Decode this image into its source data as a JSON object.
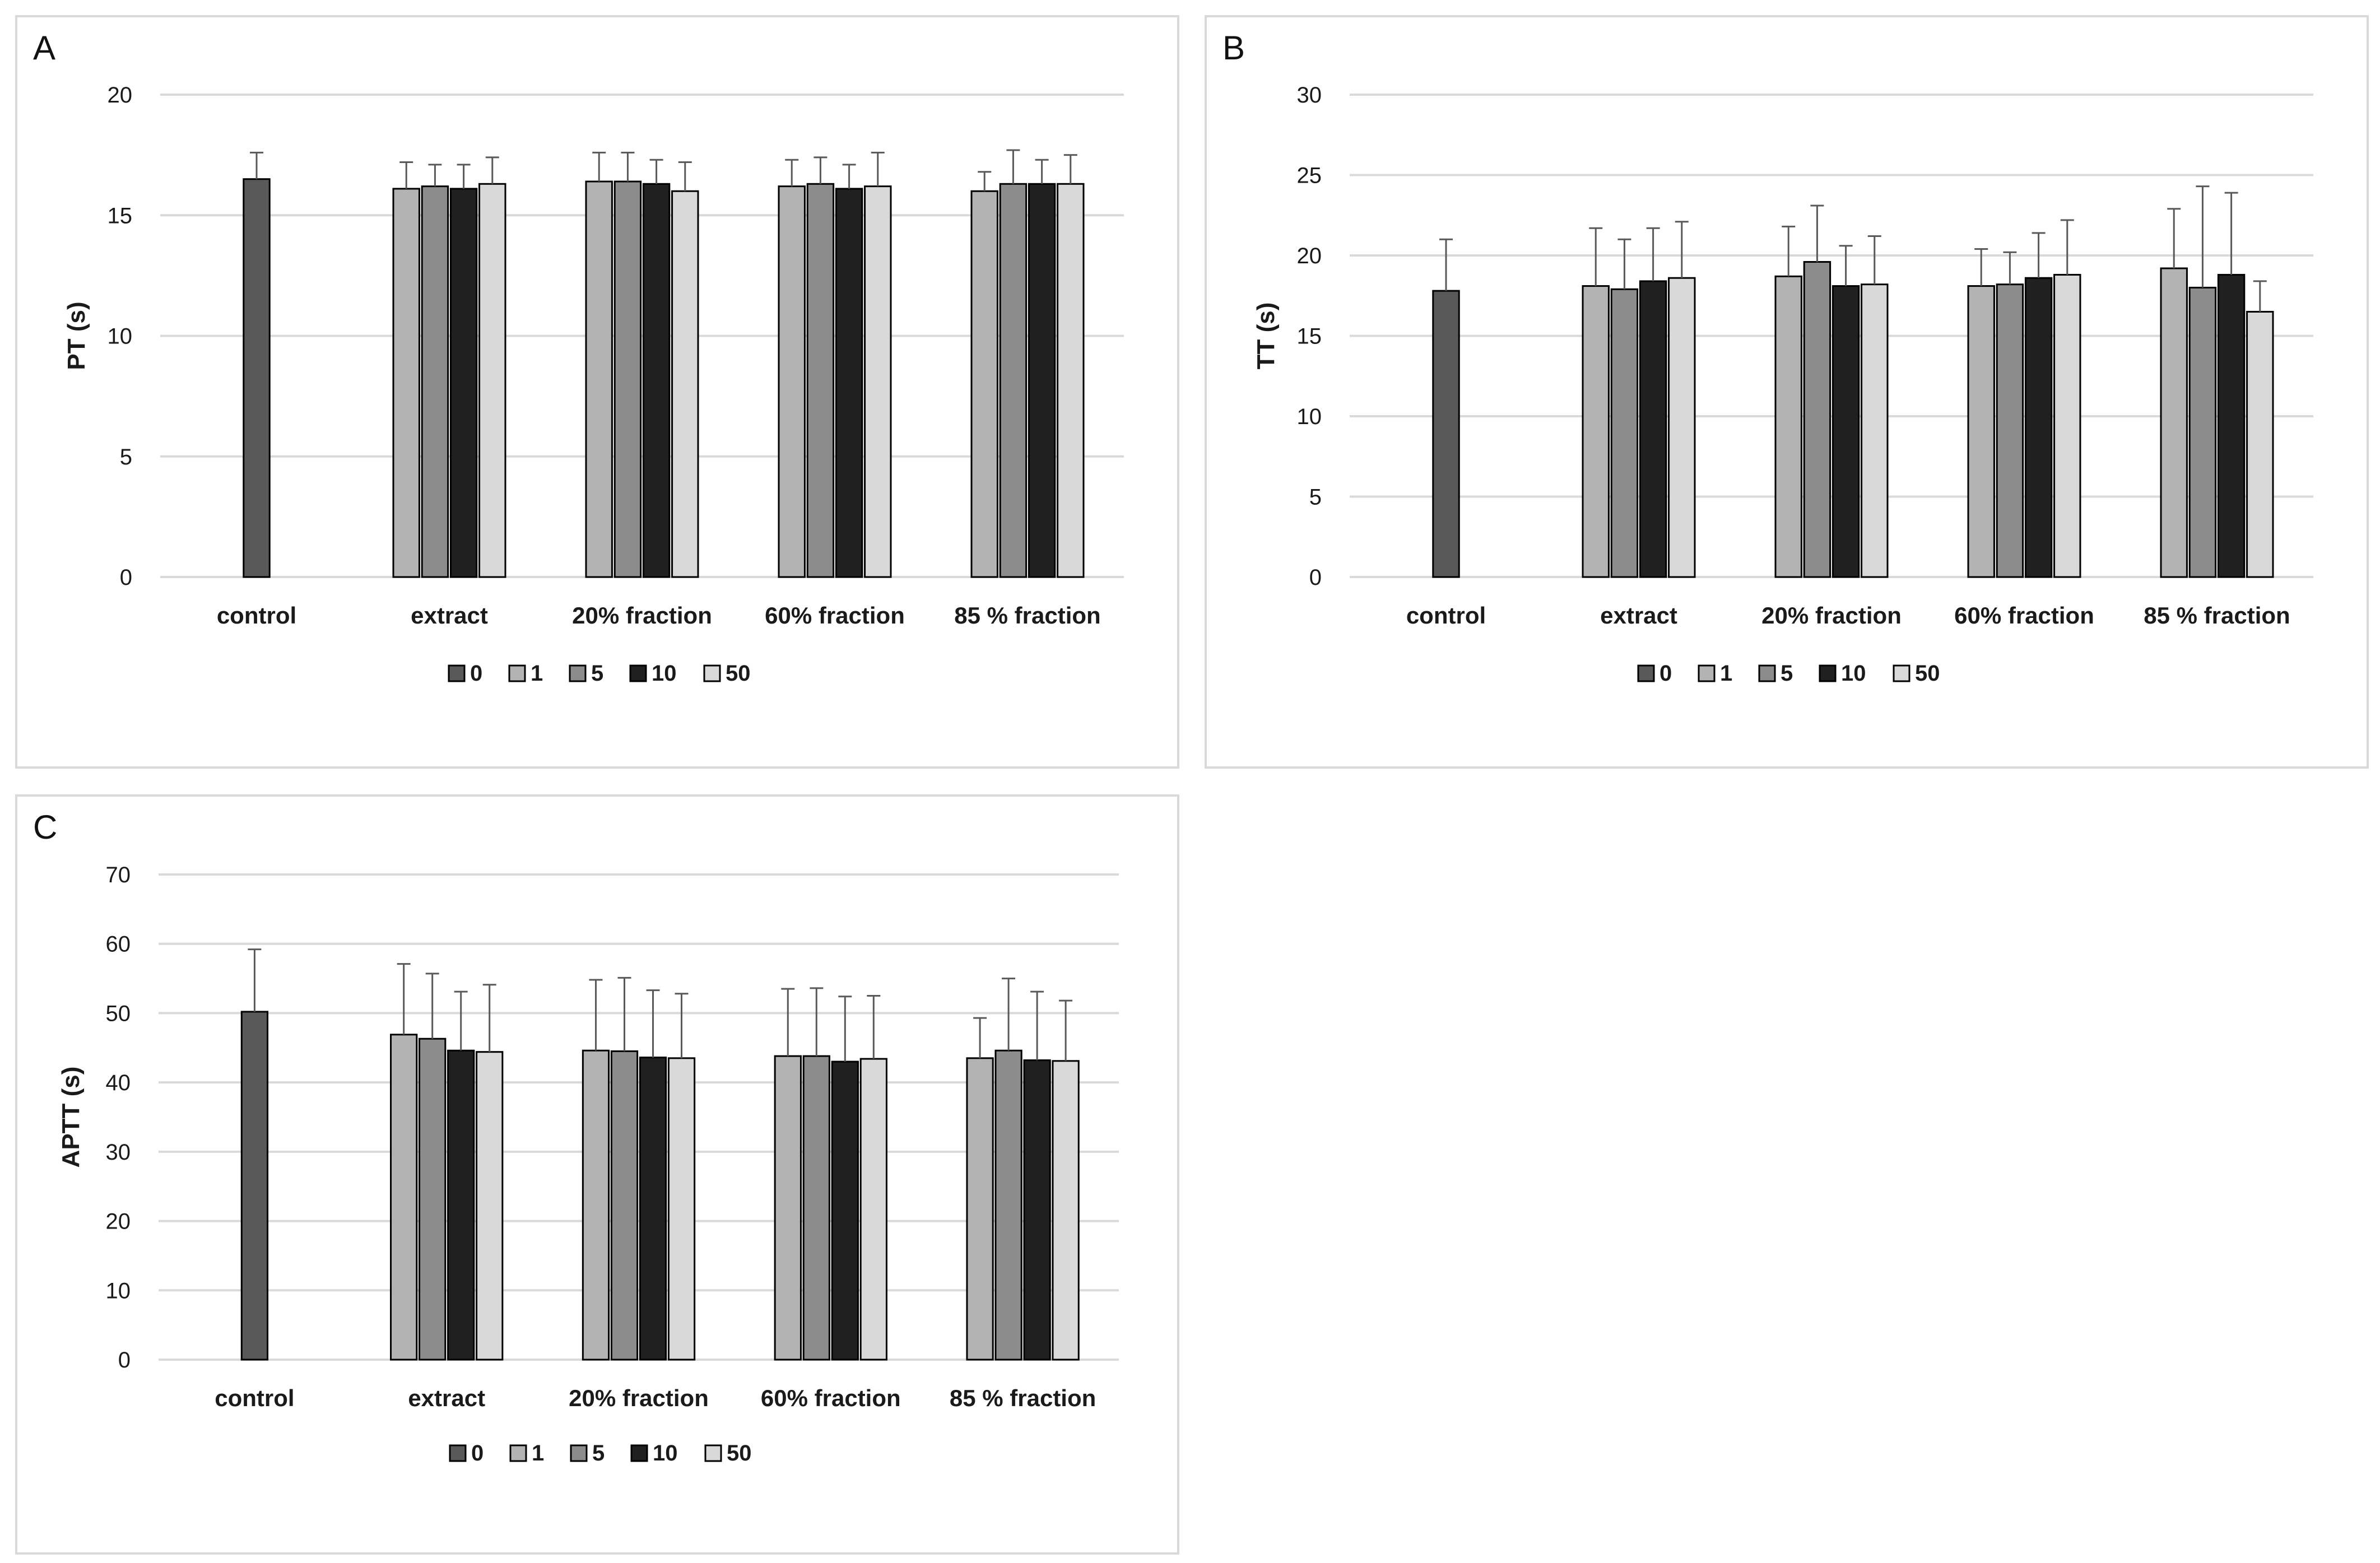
{
  "legend": {
    "title": "",
    "items": [
      "0",
      "1",
      "5",
      "10",
      "50"
    ]
  },
  "colors": {
    "series": [
      "#595959",
      "#b3b3b3",
      "#8c8c8c",
      "#202020",
      "#d9d9d9"
    ],
    "grid": "#d9d9d9",
    "error_bar": "#595959",
    "text": "#1a1a1a"
  },
  "chart_data": [
    {
      "panel": "A",
      "type": "bar",
      "ylabel": "PT (s)",
      "xlabel": "",
      "ylim": [
        0,
        20
      ],
      "yticks": [
        0,
        5,
        10,
        15,
        20
      ],
      "categories": [
        "control",
        "extract",
        "20% fraction",
        "60% fraction",
        "85 % fraction"
      ],
      "series": [
        {
          "name": "0",
          "values": [
            16.5,
            null,
            null,
            null,
            null
          ],
          "errors": [
            1.1,
            null,
            null,
            null,
            null
          ]
        },
        {
          "name": "1",
          "values": [
            null,
            16.1,
            16.4,
            16.2,
            16.0
          ],
          "errors": [
            null,
            1.1,
            1.2,
            1.1,
            0.8
          ]
        },
        {
          "name": "5",
          "values": [
            null,
            16.2,
            16.4,
            16.3,
            16.3
          ],
          "errors": [
            null,
            0.9,
            1.2,
            1.1,
            1.4
          ]
        },
        {
          "name": "10",
          "values": [
            null,
            16.1,
            16.3,
            16.1,
            16.3
          ],
          "errors": [
            null,
            1.0,
            1.0,
            1.0,
            1.0
          ]
        },
        {
          "name": "50",
          "values": [
            null,
            16.3,
            16.0,
            16.2,
            16.3
          ],
          "errors": [
            null,
            1.1,
            1.2,
            1.4,
            1.2
          ]
        }
      ]
    },
    {
      "panel": "B",
      "type": "bar",
      "ylabel": "TT (s)",
      "xlabel": "",
      "ylim": [
        0,
        30
      ],
      "yticks": [
        0,
        5,
        10,
        15,
        20,
        25,
        30
      ],
      "categories": [
        "control",
        "extract",
        "20% fraction",
        "60% fraction",
        "85 % fraction"
      ],
      "series": [
        {
          "name": "0",
          "values": [
            17.8,
            null,
            null,
            null,
            null
          ],
          "errors": [
            3.2,
            null,
            null,
            null,
            null
          ]
        },
        {
          "name": "1",
          "values": [
            null,
            18.1,
            18.7,
            18.1,
            19.2
          ],
          "errors": [
            null,
            3.6,
            3.1,
            2.3,
            3.7
          ]
        },
        {
          "name": "5",
          "values": [
            null,
            17.9,
            19.6,
            18.2,
            18.0
          ],
          "errors": [
            null,
            3.1,
            3.5,
            2.0,
            6.3
          ]
        },
        {
          "name": "10",
          "values": [
            null,
            18.4,
            18.1,
            18.6,
            18.8
          ],
          "errors": [
            null,
            3.3,
            2.5,
            2.8,
            5.1
          ]
        },
        {
          "name": "50",
          "values": [
            null,
            18.6,
            18.2,
            18.8,
            16.5
          ],
          "errors": [
            null,
            3.5,
            3.0,
            3.4,
            1.9
          ]
        }
      ]
    },
    {
      "panel": "C",
      "type": "bar",
      "ylabel": "APTT (s)",
      "xlabel": "",
      "ylim": [
        0,
        70
      ],
      "yticks": [
        0,
        10,
        20,
        30,
        40,
        50,
        60,
        70
      ],
      "categories": [
        "control",
        "extract",
        "20% fraction",
        "60% fraction",
        "85 % fraction"
      ],
      "series": [
        {
          "name": "0",
          "values": [
            50.2,
            null,
            null,
            null,
            null
          ],
          "errors": [
            9.0,
            null,
            null,
            null,
            null
          ]
        },
        {
          "name": "1",
          "values": [
            null,
            46.9,
            44.6,
            43.8,
            43.5
          ],
          "errors": [
            null,
            10.2,
            10.2,
            9.7,
            5.8
          ]
        },
        {
          "name": "5",
          "values": [
            null,
            46.3,
            44.5,
            43.8,
            44.6
          ],
          "errors": [
            null,
            9.4,
            10.6,
            9.8,
            10.4
          ]
        },
        {
          "name": "10",
          "values": [
            null,
            44.6,
            43.6,
            43.0,
            43.2
          ],
          "errors": [
            null,
            8.5,
            9.7,
            9.4,
            9.9
          ]
        },
        {
          "name": "50",
          "values": [
            null,
            44.4,
            43.5,
            43.4,
            43.1
          ],
          "errors": [
            null,
            9.7,
            9.3,
            9.1,
            8.7
          ]
        }
      ]
    }
  ]
}
